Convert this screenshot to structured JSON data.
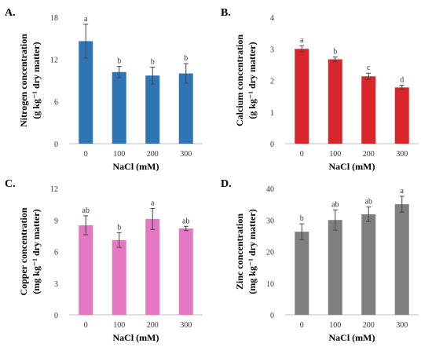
{
  "chart_data": [
    {
      "type": "bar",
      "panel_label": "A.",
      "categories": [
        "0",
        "100",
        "200",
        "300"
      ],
      "values": [
        14.6,
        10.2,
        9.7,
        10.0
      ],
      "errors": [
        2.4,
        0.8,
        1.2,
        1.4
      ],
      "significance": [
        "a",
        "b",
        "b",
        "b"
      ],
      "xlabel": "NaCl (mM)",
      "ylabel_line1": "Nitrogen concentration",
      "ylabel_line2": "(g kg⁻¹ dry matter)",
      "ylim": [
        0,
        18
      ],
      "yticks": [
        0,
        6,
        12,
        18
      ],
      "color": "#2e75b6",
      "grid": false
    },
    {
      "type": "bar",
      "panel_label": "B.",
      "categories": [
        "0",
        "100",
        "200",
        "300"
      ],
      "values": [
        3.0,
        2.67,
        2.13,
        1.78
      ],
      "errors": [
        0.1,
        0.07,
        0.1,
        0.07
      ],
      "significance": [
        "a",
        "b",
        "c",
        "d"
      ],
      "xlabel": "NaCl (mM)",
      "ylabel_line1": "Calcium concentration",
      "ylabel_line2": "(g kg⁻¹ dry matter)",
      "ylim": [
        0,
        4
      ],
      "yticks": [
        0,
        1,
        2,
        3,
        4
      ],
      "color": "#d9262a",
      "grid": false
    },
    {
      "type": "bar",
      "panel_label": "C.",
      "categories": [
        "0",
        "100",
        "200",
        "300"
      ],
      "values": [
        8.5,
        7.1,
        9.1,
        8.2
      ],
      "errors": [
        0.9,
        0.7,
        1.0,
        0.2
      ],
      "significance": [
        "ab",
        "b",
        "a",
        "ab"
      ],
      "xlabel": "NaCl (mM)",
      "ylabel_line1": "Copper concentration",
      "ylabel_line2": "(mg kg⁻¹ dry matter)",
      "ylim": [
        0,
        12
      ],
      "yticks": [
        0,
        3,
        6,
        9,
        12
      ],
      "color": "#e377c2",
      "grid": false
    },
    {
      "type": "bar",
      "panel_label": "D.",
      "categories": [
        "0",
        "100",
        "200",
        "300"
      ],
      "values": [
        26.3,
        30.0,
        31.8,
        35.0
      ],
      "errors": [
        2.5,
        3.2,
        2.3,
        2.5
      ],
      "significance": [
        "b",
        "ab",
        "ab",
        "a"
      ],
      "xlabel": "NaCl (mM)",
      "ylabel_line1": "Zinc concentration",
      "ylabel_line2": "(mg kg⁻¹ dry matter)",
      "ylim": [
        0,
        40
      ],
      "yticks": [
        0,
        10,
        20,
        30,
        40
      ],
      "color": "#7f7f7f",
      "grid": false
    }
  ]
}
